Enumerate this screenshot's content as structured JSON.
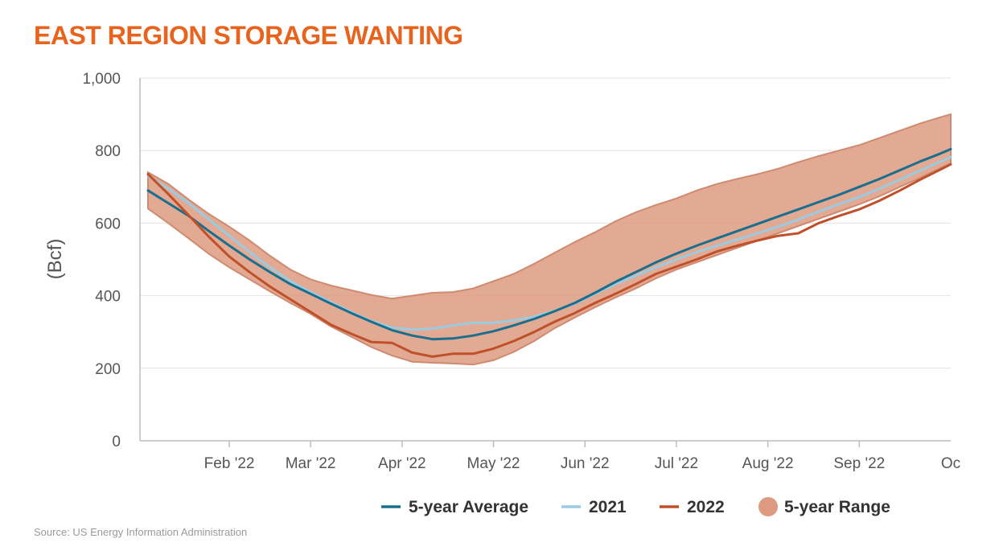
{
  "colors": {
    "title": "#e8641e",
    "avg": "#1a6e8e",
    "y2021": "#9ccbe0",
    "y2022": "#c0502a",
    "range_fill": "#dd9a80",
    "range_stroke": "#cf8a70",
    "grid": "#e2e2e2",
    "axis": "#bdbdbd",
    "text": "#555555",
    "source": "#9a9a9a",
    "legend_text": "#333333"
  },
  "source": "Source: US Energy Information Administration",
  "chart_data": {
    "type": "line",
    "title": "EAST REGION STORAGE WANTING",
    "xlabel": "",
    "ylabel": "(Bcf)",
    "ylim": [
      0,
      1000
    ],
    "xlim": [
      0,
      39.5
    ],
    "yticks": [
      0,
      200,
      400,
      600,
      800,
      1000
    ],
    "ytick_labels": [
      "0",
      "200",
      "400",
      "600",
      "800",
      "1,000"
    ],
    "xticks": [
      {
        "label": "Feb '22",
        "x": 4
      },
      {
        "label": "Mar '22",
        "x": 8
      },
      {
        "label": "Apr '22",
        "x": 12.5
      },
      {
        "label": "May '22",
        "x": 17
      },
      {
        "label": "Jun '22",
        "x": 21.5
      },
      {
        "label": "Jul '22",
        "x": 26
      },
      {
        "label": "Aug '22",
        "x": 30.5
      },
      {
        "label": "Sep '22",
        "x": 35
      },
      {
        "label": "Oc",
        "x": 39.5
      }
    ],
    "x_unit": "week index (weeks since early January 2022)",
    "x": [
      0,
      1,
      2,
      3,
      4,
      5,
      6,
      7,
      8,
      9,
      10,
      11,
      12,
      13,
      14,
      15,
      16,
      17,
      18,
      19,
      20,
      21,
      22,
      23,
      24,
      25,
      26,
      27,
      28,
      29,
      30,
      31,
      32,
      33,
      34,
      35,
      36,
      37,
      38,
      39,
      39.5
    ],
    "series": [
      {
        "name": "5-year Average",
        "key": "avg",
        "values": [
          690,
          655,
          620,
          578,
          538,
          500,
          465,
          432,
          405,
          378,
          352,
          328,
          305,
          290,
          280,
          282,
          290,
          302,
          318,
          336,
          357,
          380,
          408,
          438,
          465,
          492,
          516,
          538,
          558,
          578,
          598,
          618,
          638,
          658,
          678,
          700,
          722,
          746,
          770,
          792,
          804
        ]
      },
      {
        "name": "2021",
        "key": "y2021",
        "values": [
          730,
          695,
          655,
          610,
          565,
          520,
          478,
          440,
          410,
          382,
          355,
          330,
          312,
          306,
          309,
          318,
          325,
          325,
          332,
          342,
          358,
          378,
          405,
          432,
          455,
          478,
          500,
          520,
          538,
          555,
          572,
          590,
          610,
          632,
          652,
          672,
          695,
          720,
          745,
          770,
          782
        ]
      },
      {
        "name": "2022",
        "key": "y2022",
        "values": [
          735,
          680,
          622,
          562,
          508,
          465,
          425,
          390,
          355,
          320,
          295,
          272,
          270,
          243,
          232,
          240,
          240,
          254,
          275,
          300,
          328,
          352,
          380,
          405,
          432,
          460,
          480,
          500,
          522,
          538,
          552,
          565,
          572,
          600,
          620,
          638,
          662,
          690,
          720,
          748,
          762
        ]
      }
    ],
    "range": {
      "name": "5-year Range",
      "key": "range",
      "min": [
        640,
        600,
        558,
        515,
        478,
        445,
        412,
        380,
        350,
        315,
        287,
        258,
        235,
        218,
        215,
        213,
        210,
        222,
        245,
        275,
        310,
        340,
        368,
        395,
        420,
        448,
        472,
        492,
        512,
        532,
        552,
        572,
        592,
        612,
        632,
        652,
        674,
        700,
        725,
        752,
        765
      ],
      "max": [
        740,
        708,
        665,
        625,
        590,
        552,
        510,
        472,
        445,
        428,
        415,
        402,
        392,
        400,
        408,
        410,
        420,
        440,
        460,
        488,
        518,
        548,
        575,
        605,
        630,
        650,
        668,
        690,
        708,
        722,
        735,
        750,
        768,
        785,
        800,
        815,
        835,
        855,
        875,
        892,
        900
      ]
    },
    "legend": {
      "position": "bottom-right",
      "entries": [
        {
          "label": "5-year Average",
          "key": "avg",
          "marker": "line"
        },
        {
          "label": "2021",
          "key": "y2021",
          "marker": "line"
        },
        {
          "label": "2022",
          "key": "y2022",
          "marker": "line"
        },
        {
          "label": "5-year Range",
          "key": "range",
          "marker": "dot"
        }
      ]
    }
  }
}
